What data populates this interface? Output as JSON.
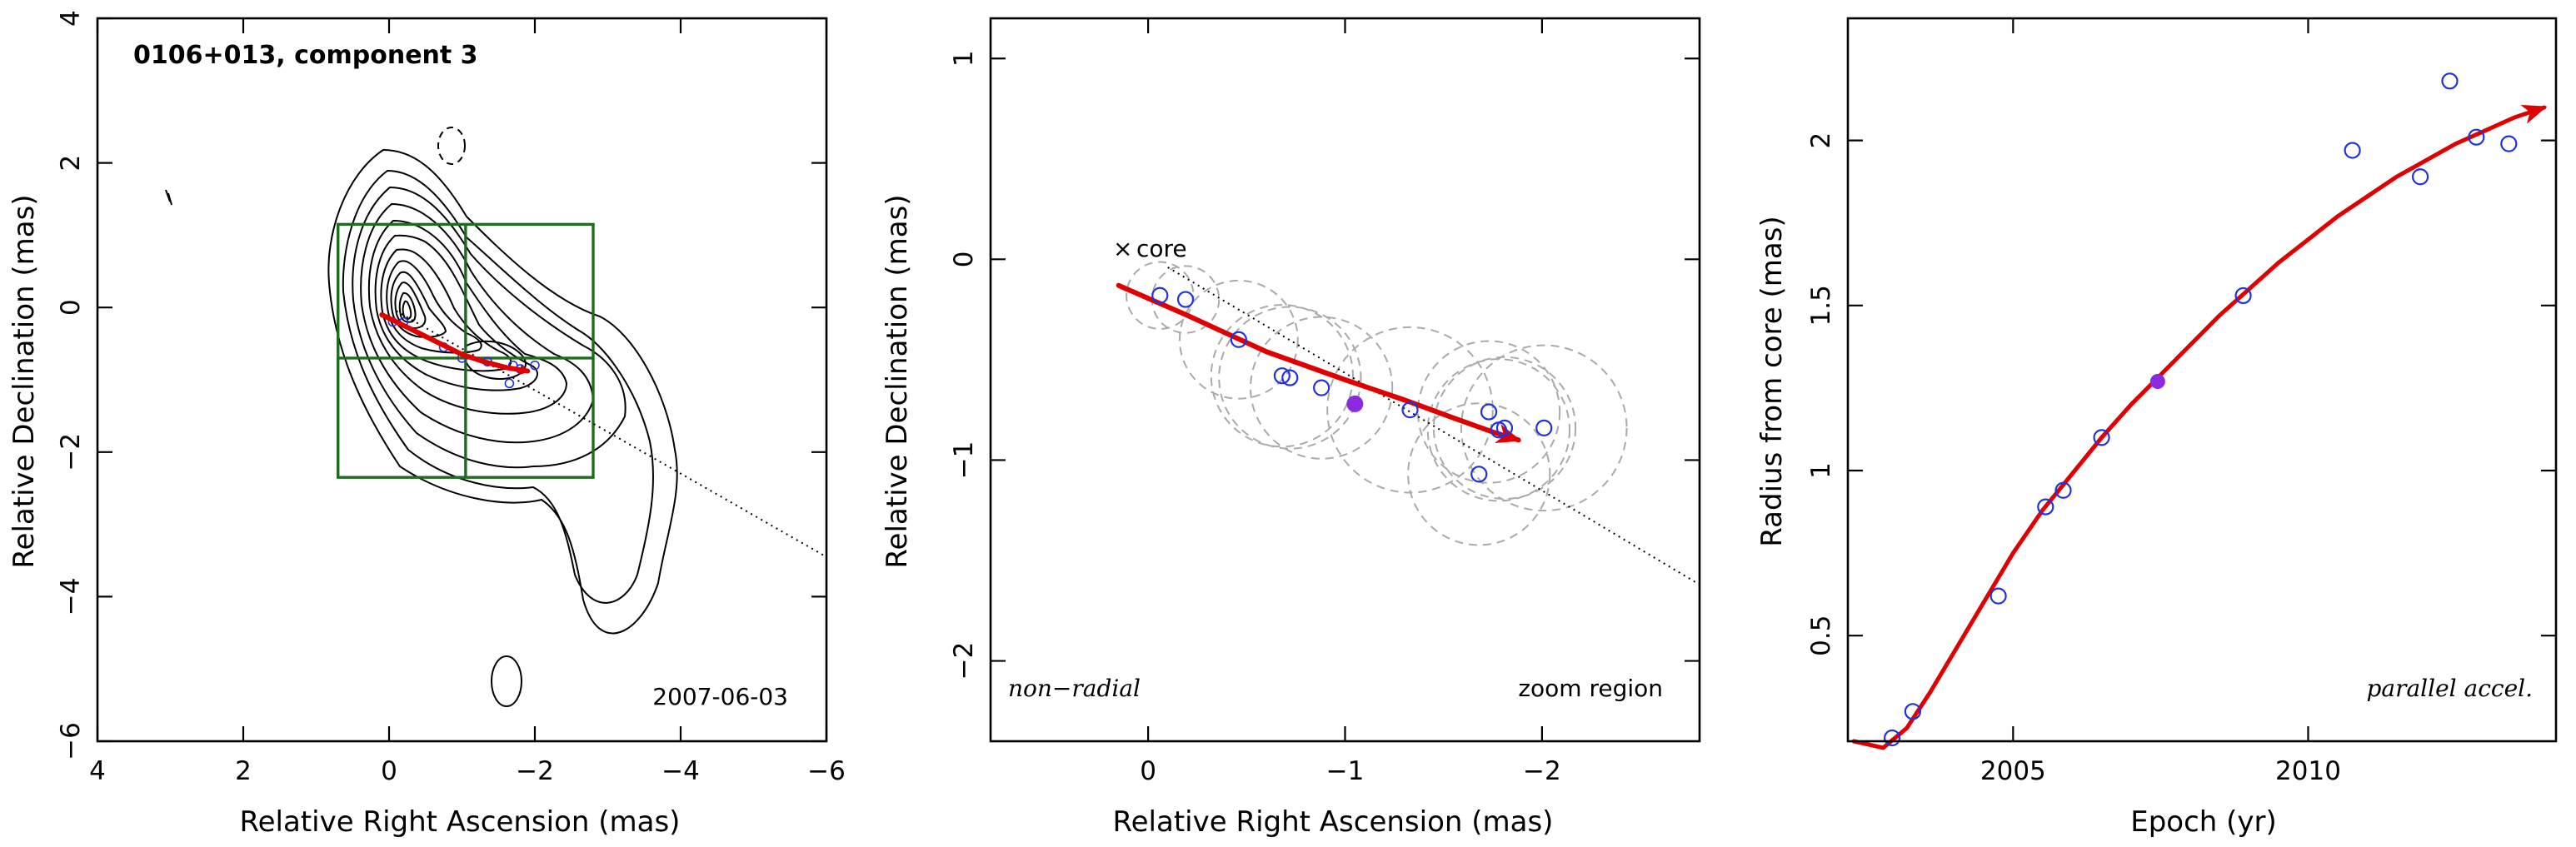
{
  "chart_data": [
    {
      "type": "scatter",
      "panel": "left",
      "title": "0106+013, component 3",
      "date_label": "2007-06-03",
      "xlabel": "Relative Right Ascension (mas)",
      "ylabel": "Relative Declination (mas)",
      "xlim": [
        4,
        -6
      ],
      "ylim": [
        -6,
        4
      ],
      "xticks": [
        4,
        2,
        0,
        -2,
        -4,
        -6
      ],
      "yticks": [
        -6,
        -4,
        -2,
        0,
        2,
        4
      ],
      "xtick_labels": [
        "4",
        "2",
        "0",
        "−2",
        "−4",
        "−6"
      ],
      "ytick_labels": [
        "−6",
        "−4",
        "−2",
        "0",
        "2",
        "4"
      ],
      "zoom_box": {
        "x": [
          0.7,
          -2.8
        ],
        "y": [
          -2.35,
          1.15
        ],
        "cross_x": -1.05,
        "cross_y": -0.7
      },
      "trajectory": [
        [
          0.1,
          -0.1
        ],
        [
          -0.3,
          -0.3
        ],
        [
          -0.7,
          -0.5
        ],
        [
          -1.0,
          -0.65
        ],
        [
          -1.3,
          -0.75
        ],
        [
          -1.6,
          -0.83
        ],
        [
          -1.9,
          -0.88
        ]
      ],
      "direction_line": [
        [
          -0.1,
          -0.05
        ],
        [
          -6,
          -3.45
        ]
      ],
      "points": [
        [
          -0.05,
          -0.2
        ],
        [
          -0.2,
          -0.2
        ],
        [
          -0.75,
          -0.55
        ],
        [
          -1.0,
          -0.7
        ],
        [
          -1.35,
          -0.75
        ],
        [
          -1.7,
          -0.8
        ],
        [
          -1.8,
          -0.85
        ],
        [
          -1.65,
          -1.05
        ],
        [
          -2.0,
          -0.8
        ]
      ]
    },
    {
      "type": "scatter",
      "panel": "middle",
      "xlabel": "Relative Right Ascension (mas)",
      "ylabel": "Relative Declination (mas)",
      "xlim": [
        0.8,
        -2.8
      ],
      "ylim": [
        -2.4,
        1.2
      ],
      "xticks": [
        0,
        -1,
        -2
      ],
      "yticks": [
        -2,
        -1,
        0,
        1
      ],
      "xtick_labels": [
        "0",
        "−1",
        "−2"
      ],
      "ytick_labels": [
        "−2",
        "−1",
        "0",
        "1"
      ],
      "core_label": "core",
      "left_note": "non−radial",
      "right_note": "zoom region",
      "points": [
        {
          "x": -0.06,
          "y": -0.18,
          "r": 0.17
        },
        {
          "x": -0.19,
          "y": -0.2,
          "r": 0.17
        },
        {
          "x": -0.46,
          "y": -0.4,
          "r": 0.3
        },
        {
          "x": -0.68,
          "y": -0.58,
          "r": 0.36
        },
        {
          "x": -0.72,
          "y": -0.59,
          "r": 0.36
        },
        {
          "x": -0.88,
          "y": -0.64,
          "r": 0.36
        },
        {
          "x": -1.33,
          "y": -0.75,
          "r": 0.42
        },
        {
          "x": -1.68,
          "y": -1.07,
          "r": 0.36
        },
        {
          "x": -1.73,
          "y": -0.76,
          "r": 0.36
        },
        {
          "x": -1.78,
          "y": -0.85,
          "r": 0.36
        },
        {
          "x": -1.81,
          "y": -0.84,
          "r": 0.36
        },
        {
          "x": -2.01,
          "y": -0.84,
          "r": 0.42
        }
      ],
      "highlight": {
        "x": -1.05,
        "y": -0.72
      },
      "trajectory": [
        [
          0.15,
          -0.13
        ],
        [
          -0.2,
          -0.28
        ],
        [
          -0.6,
          -0.46
        ],
        [
          -1.0,
          -0.6
        ],
        [
          -1.3,
          -0.7
        ],
        [
          -1.55,
          -0.79
        ],
        [
          -1.75,
          -0.86
        ],
        [
          -1.88,
          -0.9
        ]
      ],
      "direction_line": [
        [
          -0.1,
          -0.04
        ],
        [
          -2.8,
          -1.62
        ]
      ]
    },
    {
      "type": "scatter",
      "panel": "right",
      "xlabel": "Epoch (yr)",
      "ylabel": "Radius from core (mas)",
      "xlim": [
        2002.2,
        2014.2
      ],
      "ylim": [
        0.18,
        2.37
      ],
      "xticks": [
        2005,
        2010
      ],
      "yticks": [
        0.5,
        1,
        1.5,
        2
      ],
      "xtick_labels": [
        "2005",
        "2010"
      ],
      "ytick_labels": [
        "0.5",
        "1",
        "1.5",
        "2"
      ],
      "note": "parallel accel.",
      "points": [
        [
          2002.95,
          0.19
        ],
        [
          2003.3,
          0.27
        ],
        [
          2004.75,
          0.62
        ],
        [
          2005.55,
          0.89
        ],
        [
          2005.85,
          0.94
        ],
        [
          2006.5,
          1.1
        ],
        [
          2008.9,
          1.53
        ],
        [
          2010.75,
          1.97
        ],
        [
          2011.9,
          1.89
        ],
        [
          2012.4,
          2.18
        ],
        [
          2012.85,
          2.01
        ],
        [
          2013.4,
          1.99
        ]
      ],
      "highlight": [
        2007.45,
        1.27
      ],
      "fit_curve": [
        [
          2002.3,
          0.18
        ],
        [
          2002.8,
          0.16
        ],
        [
          2003.2,
          0.22
        ],
        [
          2003.6,
          0.33
        ],
        [
          2004.0,
          0.45
        ],
        [
          2004.5,
          0.6
        ],
        [
          2005.0,
          0.75
        ],
        [
          2005.5,
          0.88
        ],
        [
          2006.0,
          0.99
        ],
        [
          2006.5,
          1.1
        ],
        [
          2007.0,
          1.2
        ],
        [
          2007.5,
          1.29
        ],
        [
          2008.0,
          1.38
        ],
        [
          2008.5,
          1.47
        ],
        [
          2009.0,
          1.55
        ],
        [
          2009.5,
          1.63
        ],
        [
          2010.0,
          1.7
        ],
        [
          2010.5,
          1.77
        ],
        [
          2011.0,
          1.83
        ],
        [
          2011.5,
          1.89
        ],
        [
          2012.0,
          1.94
        ],
        [
          2012.5,
          1.99
        ],
        [
          2013.0,
          2.03
        ],
        [
          2013.5,
          2.07
        ],
        [
          2014.0,
          2.1
        ]
      ]
    }
  ]
}
